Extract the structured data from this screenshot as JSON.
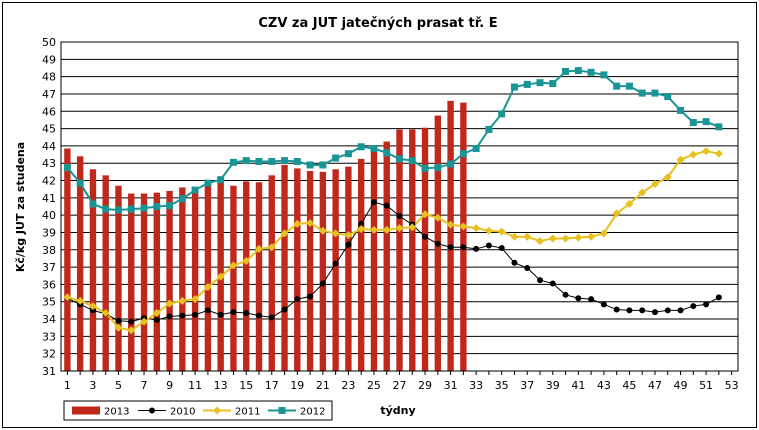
{
  "chart_data": {
    "type": "bar+line",
    "title": "CZV za JUT jatečných prasat tř. E",
    "xlabel": "týdny",
    "ylabel": "Kč/kg JUT za studena",
    "ylim": [
      31,
      50
    ],
    "xlim": [
      0.5,
      53.5
    ],
    "x_ticks": [
      1,
      3,
      5,
      7,
      9,
      11,
      13,
      15,
      17,
      19,
      21,
      23,
      25,
      27,
      29,
      31,
      33,
      35,
      37,
      39,
      41,
      43,
      45,
      47,
      49,
      51,
      53
    ],
    "y_ticks": [
      31,
      32,
      33,
      34,
      35,
      36,
      37,
      38,
      39,
      40,
      41,
      42,
      43,
      44,
      45,
      46,
      47,
      48,
      49,
      50
    ],
    "grid": "horizontal",
    "legend_position": "bottom-left",
    "series": [
      {
        "name": "2013",
        "kind": "bar",
        "color": "#c0281c",
        "x": [
          1,
          2,
          3,
          4,
          5,
          6,
          7,
          8,
          9,
          10,
          11,
          12,
          13,
          14,
          15,
          16,
          17,
          18,
          19,
          20,
          21,
          22,
          23,
          24,
          25,
          26,
          27,
          28,
          29,
          30,
          31,
          32
        ],
        "values": [
          43.85,
          43.4,
          42.65,
          42.3,
          41.7,
          41.25,
          41.25,
          41.3,
          41.4,
          41.6,
          41.6,
          41.75,
          41.9,
          41.7,
          41.95,
          41.9,
          42.3,
          42.9,
          42.7,
          42.55,
          42.5,
          42.65,
          42.8,
          43.25,
          43.85,
          44.25,
          44.95,
          44.95,
          45.05,
          45.75,
          46.6,
          46.5
        ]
      },
      {
        "name": "2010",
        "kind": "line",
        "color": "#000000",
        "marker": "circle",
        "x": [
          1,
          2,
          3,
          4,
          5,
          6,
          7,
          8,
          9,
          10,
          11,
          12,
          13,
          14,
          15,
          16,
          17,
          18,
          19,
          20,
          21,
          22,
          23,
          24,
          25,
          26,
          27,
          28,
          29,
          30,
          31,
          32,
          33,
          34,
          35,
          36,
          37,
          38,
          39,
          40,
          41,
          42,
          43,
          44,
          45,
          46,
          47,
          48,
          49,
          50,
          51,
          52
        ],
        "values": [
          35.2,
          34.85,
          34.5,
          34.3,
          33.9,
          33.85,
          34.05,
          33.95,
          34.15,
          34.2,
          34.25,
          34.5,
          34.25,
          34.4,
          34.35,
          34.2,
          34.1,
          34.55,
          35.15,
          35.3,
          36.05,
          37.2,
          38.3,
          39.5,
          40.75,
          40.55,
          39.95,
          39.45,
          38.75,
          38.35,
          38.15,
          38.15,
          38.05,
          38.25,
          38.1,
          37.25,
          36.95,
          36.25,
          36.05,
          35.4,
          35.2,
          35.15,
          34.85,
          34.55,
          34.5,
          34.5,
          34.4,
          34.5,
          34.5,
          34.75,
          34.85,
          35.25
        ]
      },
      {
        "name": "2011",
        "kind": "line",
        "color": "#e8c020",
        "marker": "diamond",
        "x": [
          1,
          2,
          3,
          4,
          5,
          6,
          7,
          8,
          9,
          10,
          11,
          12,
          13,
          14,
          15,
          16,
          17,
          18,
          19,
          20,
          21,
          22,
          23,
          24,
          25,
          26,
          27,
          28,
          29,
          30,
          31,
          32,
          33,
          34,
          35,
          36,
          37,
          38,
          39,
          40,
          41,
          42,
          43,
          44,
          45,
          46,
          47,
          48,
          49,
          50,
          51,
          52
        ],
        "values": [
          35.25,
          35.05,
          34.75,
          34.35,
          33.5,
          33.35,
          33.85,
          34.35,
          34.9,
          35.05,
          35.15,
          35.85,
          36.45,
          37.1,
          37.35,
          38.05,
          38.15,
          38.95,
          39.5,
          39.55,
          39.1,
          38.95,
          38.85,
          39.2,
          39.15,
          39.15,
          39.25,
          39.3,
          40.05,
          39.85,
          39.45,
          39.35,
          39.25,
          39.1,
          39.05,
          38.75,
          38.75,
          38.5,
          38.65,
          38.65,
          38.7,
          38.75,
          38.95,
          40.1,
          40.65,
          41.3,
          41.8,
          42.2,
          43.2,
          43.5,
          43.7,
          43.55
        ]
      },
      {
        "name": "2012",
        "kind": "line",
        "color": "#1a9595",
        "marker": "square",
        "x": [
          1,
          2,
          3,
          4,
          5,
          6,
          7,
          8,
          9,
          10,
          11,
          12,
          13,
          14,
          15,
          16,
          17,
          18,
          19,
          20,
          21,
          22,
          23,
          24,
          25,
          26,
          27,
          28,
          29,
          30,
          31,
          32,
          33,
          34,
          35,
          36,
          37,
          38,
          39,
          40,
          41,
          42,
          43,
          44,
          45,
          46,
          47,
          48,
          49,
          50,
          51,
          52
        ],
        "values": [
          42.75,
          41.85,
          40.65,
          40.35,
          40.3,
          40.35,
          40.4,
          40.5,
          40.55,
          40.95,
          41.45,
          41.85,
          42.05,
          43.05,
          43.15,
          43.1,
          43.1,
          43.15,
          43.1,
          42.9,
          42.9,
          43.3,
          43.55,
          43.95,
          43.85,
          43.6,
          43.25,
          43.15,
          42.7,
          42.75,
          42.95,
          43.55,
          43.85,
          44.95,
          45.85,
          47.4,
          47.55,
          47.65,
          47.6,
          48.3,
          48.35,
          48.25,
          48.1,
          47.45,
          47.45,
          47.05,
          47.05,
          46.85,
          46.05,
          45.35,
          45.4,
          45.1
        ]
      }
    ]
  }
}
